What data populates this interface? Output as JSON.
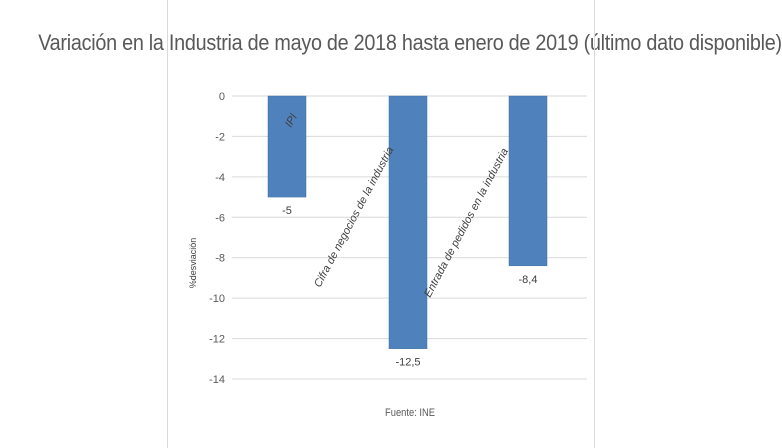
{
  "chart_data": {
    "type": "bar",
    "title": "Variación en la Industria de mayo de 2018 hasta enero de 2019 (último dato disponible)",
    "categories": [
      "IPI",
      "Cifra de negocios de la industria",
      "Entrada de pedidos en la industria"
    ],
    "values": [
      -5,
      -12.5,
      -8.4
    ],
    "data_labels": [
      "-5",
      "-12,5",
      "-8,4"
    ],
    "ylabel": "%desviación",
    "xlabel": "",
    "ylim": [
      -14,
      0
    ],
    "yticks": [
      0,
      -2,
      -4,
      -6,
      -8,
      -10,
      -12,
      -14
    ],
    "grid": true,
    "source": "Fuente: INE",
    "colors": {
      "bar": "#4f81bd",
      "grid": "#d9d9d9"
    }
  }
}
